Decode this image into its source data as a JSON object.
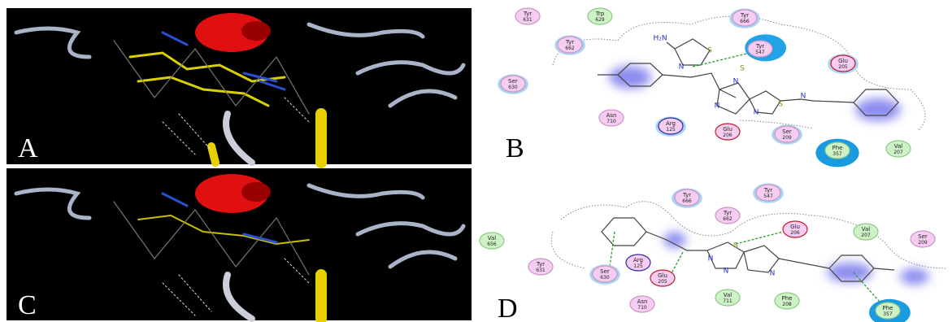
{
  "panel_a": {
    "label": "A"
  },
  "panel_b": {
    "label": "B",
    "residues": [
      {
        "name": "Tyr",
        "number": "631",
        "fill": "#f6ccf1",
        "ring": "#c995c4"
      },
      {
        "name": "Trp",
        "number": "629",
        "fill": "#cdf2c6",
        "ring": "#8fc788"
      },
      {
        "name": "Tyr",
        "number": "666",
        "fill": "#f6ccf1",
        "ring": "#c995c4",
        "halo": "#a9d4f2"
      },
      {
        "name": "Tyr",
        "number": "662",
        "fill": "#f6ccf1",
        "ring": "#c995c4",
        "halo": "#a9d4f2"
      },
      {
        "name": "Tyr",
        "number": "547",
        "fill": "#f6ccf1",
        "ring": "#c995c4",
        "halo": "#22a3e6"
      },
      {
        "name": "Glu",
        "number": "205",
        "fill": "#f6ccf1",
        "ring": "#c0182a",
        "halo": "#a9d4f2"
      },
      {
        "name": "Ser",
        "number": "630",
        "fill": "#f6ccf1",
        "ring": "#c995c4",
        "halo": "#a9d4f2"
      },
      {
        "name": "Asn",
        "number": "710",
        "fill": "#f6ccf1",
        "ring": "#c995c4"
      },
      {
        "name": "Arg",
        "number": "125",
        "fill": "#f6ccf1",
        "ring": "#2a2a9a",
        "halo": "#a9d4f2"
      },
      {
        "name": "Glu",
        "number": "206",
        "fill": "#f6ccf1",
        "ring": "#c0182a"
      },
      {
        "name": "Ser",
        "number": "209",
        "fill": "#f6ccf1",
        "ring": "#c995c4",
        "halo": "#a9d4f2"
      },
      {
        "name": "Phe",
        "number": "357",
        "fill": "#cdf2c6",
        "ring": "#8fc788",
        "halo": "#1a9be0"
      },
      {
        "name": "Val",
        "number": "207",
        "fill": "#cdf2c6",
        "ring": "#8fc788"
      }
    ],
    "atoms": [
      "H₂N",
      "N",
      "S",
      "N",
      "S",
      "N",
      "N",
      "S",
      "N"
    ]
  },
  "panel_c": {
    "label": "C"
  },
  "panel_d": {
    "label": "D",
    "residues": [
      {
        "name": "Tyr",
        "number": "666",
        "fill": "#f6ccf1",
        "ring": "#c995c4",
        "halo": "#a9d4f2"
      },
      {
        "name": "Tyr",
        "number": "547",
        "fill": "#f6ccf1",
        "ring": "#c995c4",
        "halo": "#a9d4f2"
      },
      {
        "name": "Tyr",
        "number": "662",
        "fill": "#f6ccf1",
        "ring": "#c995c4"
      },
      {
        "name": "Glu",
        "number": "206",
        "fill": "#f6ccf1",
        "ring": "#c0182a"
      },
      {
        "name": "Val",
        "number": "207",
        "fill": "#cdf2c6",
        "ring": "#8fc788"
      },
      {
        "name": "Ser",
        "number": "209",
        "fill": "#f6ccf1",
        "ring": "#c995c4"
      },
      {
        "name": "Val",
        "number": "656",
        "fill": "#cdf2c6",
        "ring": "#8fc788"
      },
      {
        "name": "Tyr",
        "number": "631",
        "fill": "#f6ccf1",
        "ring": "#c995c4"
      },
      {
        "name": "Ser",
        "number": "630",
        "fill": "#f6ccf1",
        "ring": "#c995c4",
        "halo": "#a9d4f2"
      },
      {
        "name": "Arg",
        "number": "125",
        "fill": "#f6ccf1",
        "ring": "#2a2a9a"
      },
      {
        "name": "Glu",
        "number": "205",
        "fill": "#f6ccf1",
        "ring": "#c0182a"
      },
      {
        "name": "Val",
        "number": "711",
        "fill": "#cdf2c6",
        "ring": "#8fc788"
      },
      {
        "name": "Phe",
        "number": "208",
        "fill": "#cdf2c6",
        "ring": "#8fc788"
      },
      {
        "name": "Asn",
        "number": "710",
        "fill": "#f6ccf1",
        "ring": "#c995c4"
      },
      {
        "name": "Phe",
        "number": "357",
        "fill": "#cdf2c6",
        "ring": "#8fc788",
        "halo": "#1a9be0"
      }
    ],
    "atoms": [
      "S",
      "N",
      "N",
      "N"
    ]
  }
}
